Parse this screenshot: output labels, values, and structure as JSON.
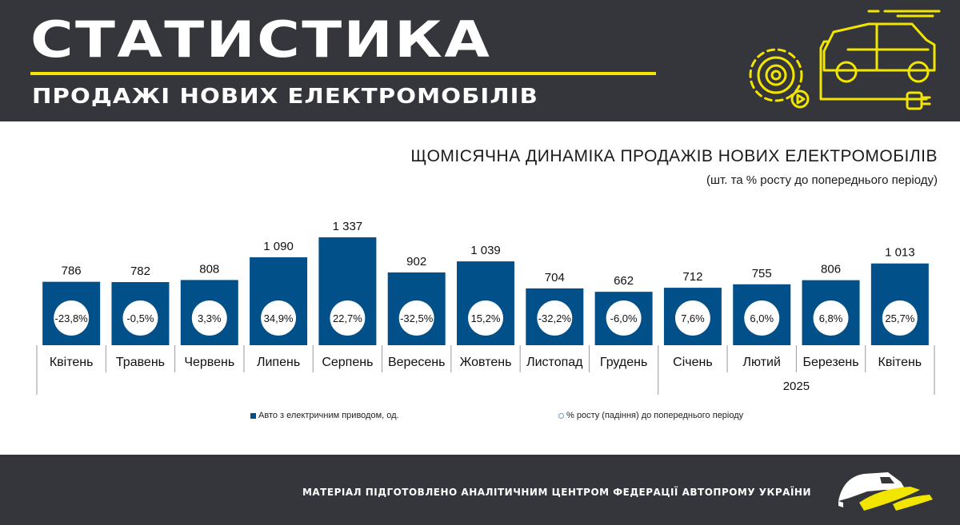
{
  "header": {
    "title": "СТАТИСТИКА",
    "subtitle": "ПРОДАЖІ НОВИХ ЕЛЕКТРОМОБІЛІВ",
    "icon": "ev-car-gear-icon",
    "accent_color": "#f2e500",
    "background_color": "#35363b"
  },
  "chart_title": "ЩОМІСЯЧНА ДИНАМІКА ПРОДАЖІВ НОВИХ ЕЛЕКТРОМОБІЛІВ",
  "chart_subtitle": "(шт. та % росту до попереднього періоду)",
  "chart_data": {
    "type": "bar",
    "categories": [
      "Квітень",
      "Травень",
      "Червень",
      "Липень",
      "Серпень",
      "Вересень",
      "Жовтень",
      "Листопад",
      "Грудень",
      "Січень",
      "Лютий",
      "Березень",
      "Квітень"
    ],
    "values": [
      786,
      782,
      808,
      1090,
      1337,
      902,
      1039,
      704,
      662,
      712,
      755,
      806,
      1013
    ],
    "value_labels": [
      "786",
      "782",
      "808",
      "1 090",
      "1 337",
      "902",
      "1 039",
      "704",
      "662",
      "712",
      "755",
      "806",
      "1 013"
    ],
    "growth_labels": [
      "-23,8%",
      "-0,5%",
      "3,3%",
      "34,9%",
      "22,7%",
      "-32,5%",
      "15,2%",
      "-32,2%",
      "-6,0%",
      "7,6%",
      "6,0%",
      "6,8%",
      "25,7%"
    ],
    "group_label": "2025",
    "group_start_index": 9,
    "ylim": [
      0,
      1400
    ],
    "bar_color": "#02508a",
    "series": [
      {
        "name": "Авто з електричним приводом, од.",
        "values": [
          786,
          782,
          808,
          1090,
          1337,
          902,
          1039,
          704,
          662,
          712,
          755,
          806,
          1013
        ]
      },
      {
        "name": "% росту (падіння) до попереднього періоду",
        "values": [
          -23.8,
          -0.5,
          3.3,
          34.9,
          22.7,
          -32.5,
          15.2,
          -32.2,
          -6.0,
          7.6,
          6.0,
          6.8,
          25.7
        ]
      }
    ],
    "legend_position": "bottom",
    "grid": false
  },
  "legend": {
    "item1": "Авто з електричним приводом, од.",
    "item2": "% росту (падіння) до попереднього періоду"
  },
  "footer": {
    "text": "МАТЕРІАЛ ПІДГОТОВЛЕНО АНАЛІТИЧНИМ ЦЕНТРОМ ФЕДЕРАЦІЇ АВТОПРОМУ УКРАЇНИ",
    "logo": "federation-logo"
  }
}
